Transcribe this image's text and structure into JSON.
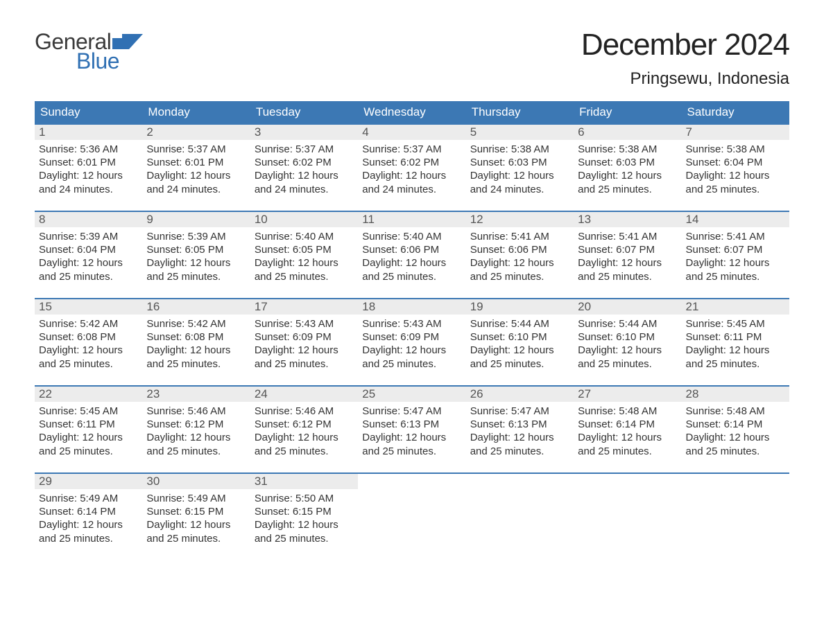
{
  "brand": {
    "line1": "General",
    "line2": "Blue"
  },
  "colors": {
    "header_bg": "#3c78b4",
    "header_text": "#ffffff",
    "row_border": "#3c78b4",
    "daynum_bg": "#ececec",
    "daynum_text": "#555555",
    "body_text": "#333333",
    "title_text": "#222222",
    "brand_gray": "#3b3b3b",
    "brand_blue": "#3070b3",
    "page_bg": "#ffffff"
  },
  "title": "December 2024",
  "subtitle": "Pringsewu, Indonesia",
  "days_of_week": [
    "Sunday",
    "Monday",
    "Tuesday",
    "Wednesday",
    "Thursday",
    "Friday",
    "Saturday"
  ],
  "labels": {
    "sunrise": "Sunrise:",
    "sunset": "Sunset:",
    "daylight": "Daylight:"
  },
  "weeks": [
    [
      {
        "n": "1",
        "sunrise": "5:36 AM",
        "sunset": "6:01 PM",
        "daylight": "12 hours and 24 minutes."
      },
      {
        "n": "2",
        "sunrise": "5:37 AM",
        "sunset": "6:01 PM",
        "daylight": "12 hours and 24 minutes."
      },
      {
        "n": "3",
        "sunrise": "5:37 AM",
        "sunset": "6:02 PM",
        "daylight": "12 hours and 24 minutes."
      },
      {
        "n": "4",
        "sunrise": "5:37 AM",
        "sunset": "6:02 PM",
        "daylight": "12 hours and 24 minutes."
      },
      {
        "n": "5",
        "sunrise": "5:38 AM",
        "sunset": "6:03 PM",
        "daylight": "12 hours and 24 minutes."
      },
      {
        "n": "6",
        "sunrise": "5:38 AM",
        "sunset": "6:03 PM",
        "daylight": "12 hours and 25 minutes."
      },
      {
        "n": "7",
        "sunrise": "5:38 AM",
        "sunset": "6:04 PM",
        "daylight": "12 hours and 25 minutes."
      }
    ],
    [
      {
        "n": "8",
        "sunrise": "5:39 AM",
        "sunset": "6:04 PM",
        "daylight": "12 hours and 25 minutes."
      },
      {
        "n": "9",
        "sunrise": "5:39 AM",
        "sunset": "6:05 PM",
        "daylight": "12 hours and 25 minutes."
      },
      {
        "n": "10",
        "sunrise": "5:40 AM",
        "sunset": "6:05 PM",
        "daylight": "12 hours and 25 minutes."
      },
      {
        "n": "11",
        "sunrise": "5:40 AM",
        "sunset": "6:06 PM",
        "daylight": "12 hours and 25 minutes."
      },
      {
        "n": "12",
        "sunrise": "5:41 AM",
        "sunset": "6:06 PM",
        "daylight": "12 hours and 25 minutes."
      },
      {
        "n": "13",
        "sunrise": "5:41 AM",
        "sunset": "6:07 PM",
        "daylight": "12 hours and 25 minutes."
      },
      {
        "n": "14",
        "sunrise": "5:41 AM",
        "sunset": "6:07 PM",
        "daylight": "12 hours and 25 minutes."
      }
    ],
    [
      {
        "n": "15",
        "sunrise": "5:42 AM",
        "sunset": "6:08 PM",
        "daylight": "12 hours and 25 minutes."
      },
      {
        "n": "16",
        "sunrise": "5:42 AM",
        "sunset": "6:08 PM",
        "daylight": "12 hours and 25 minutes."
      },
      {
        "n": "17",
        "sunrise": "5:43 AM",
        "sunset": "6:09 PM",
        "daylight": "12 hours and 25 minutes."
      },
      {
        "n": "18",
        "sunrise": "5:43 AM",
        "sunset": "6:09 PM",
        "daylight": "12 hours and 25 minutes."
      },
      {
        "n": "19",
        "sunrise": "5:44 AM",
        "sunset": "6:10 PM",
        "daylight": "12 hours and 25 minutes."
      },
      {
        "n": "20",
        "sunrise": "5:44 AM",
        "sunset": "6:10 PM",
        "daylight": "12 hours and 25 minutes."
      },
      {
        "n": "21",
        "sunrise": "5:45 AM",
        "sunset": "6:11 PM",
        "daylight": "12 hours and 25 minutes."
      }
    ],
    [
      {
        "n": "22",
        "sunrise": "5:45 AM",
        "sunset": "6:11 PM",
        "daylight": "12 hours and 25 minutes."
      },
      {
        "n": "23",
        "sunrise": "5:46 AM",
        "sunset": "6:12 PM",
        "daylight": "12 hours and 25 minutes."
      },
      {
        "n": "24",
        "sunrise": "5:46 AM",
        "sunset": "6:12 PM",
        "daylight": "12 hours and 25 minutes."
      },
      {
        "n": "25",
        "sunrise": "5:47 AM",
        "sunset": "6:13 PM",
        "daylight": "12 hours and 25 minutes."
      },
      {
        "n": "26",
        "sunrise": "5:47 AM",
        "sunset": "6:13 PM",
        "daylight": "12 hours and 25 minutes."
      },
      {
        "n": "27",
        "sunrise": "5:48 AM",
        "sunset": "6:14 PM",
        "daylight": "12 hours and 25 minutes."
      },
      {
        "n": "28",
        "sunrise": "5:48 AM",
        "sunset": "6:14 PM",
        "daylight": "12 hours and 25 minutes."
      }
    ],
    [
      {
        "n": "29",
        "sunrise": "5:49 AM",
        "sunset": "6:14 PM",
        "daylight": "12 hours and 25 minutes."
      },
      {
        "n": "30",
        "sunrise": "5:49 AM",
        "sunset": "6:15 PM",
        "daylight": "12 hours and 25 minutes."
      },
      {
        "n": "31",
        "sunrise": "5:50 AM",
        "sunset": "6:15 PM",
        "daylight": "12 hours and 25 minutes."
      },
      null,
      null,
      null,
      null
    ]
  ]
}
